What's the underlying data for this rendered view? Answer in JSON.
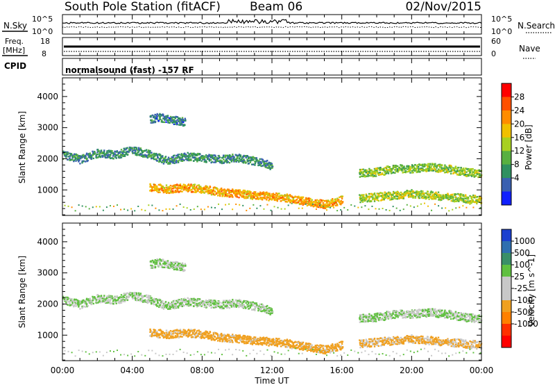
{
  "chart_data": {
    "type": "heatmap",
    "header": {
      "station": "South Pole Station (fitACF)",
      "beam": "Beam 06",
      "date": "02/Nov/2015",
      "cpid_label": "CPID",
      "cpid_text": "normalsound (fast) -157 RF"
    },
    "aux_panels": {
      "nsky": {
        "label": "N.Sky",
        "left_ticks": [
          "10^5",
          "10^0"
        ],
        "right_label": "N.Search",
        "right_ticks": [
          "10^5",
          "10^0"
        ]
      },
      "freq": {
        "label_line1": "Freq.",
        "label_line2": "[MHz]",
        "left_ticks": [
          "18",
          "8"
        ],
        "right_label": "Nave",
        "right_ticks": [
          "60",
          "0"
        ]
      }
    },
    "x_axis": {
      "label": "Time UT",
      "ticks": [
        "00:00",
        "04:00",
        "08:00",
        "12:00",
        "16:00",
        "20:00",
        "00:00"
      ],
      "range_hours": [
        0,
        24
      ]
    },
    "panels": [
      {
        "name": "power",
        "ylabel": "Slant Range [km]",
        "ylim": [
          180,
          4600
        ],
        "yticks": [
          "1000",
          "2000",
          "3000",
          "4000"
        ],
        "colorbar": {
          "label": "Power [dB]",
          "ticks": [
            "28",
            "24",
            "20",
            "16",
            "12",
            "8",
            "4"
          ],
          "colors": [
            "#ff0000",
            "#ff5000",
            "#ff8c00",
            "#f0c000",
            "#a8d020",
            "#58b040",
            "#2f9060",
            "#3a60b0",
            "#1020ff"
          ]
        }
      },
      {
        "name": "velocity",
        "ylabel": "Slant Range [km]",
        "ylim": [
          180,
          4600
        ],
        "yticks": [
          "1000",
          "2000",
          "3000",
          "4000"
        ],
        "colorbar": {
          "label": "Velocity [m s^-1]",
          "ticks": [
            "1000",
            "500",
            "100",
            "25",
            "-25",
            "-100",
            "-500",
            "-1000"
          ],
          "colors": [
            "#1a3fcf",
            "#2f6fb0",
            "#3a8f68",
            "#60c040",
            "#c8c8c8",
            "#c8c8c8",
            "#f0a020",
            "#ff8000",
            "#ff3000",
            "#ff0000"
          ]
        }
      }
    ],
    "echo_bands": [
      {
        "name": "ionospheric-far",
        "t": [
          0,
          1,
          2,
          3,
          4,
          5,
          6,
          7,
          8,
          9,
          10,
          11,
          12
        ],
        "range_km": [
          2150,
          2000,
          2200,
          2150,
          2300,
          2150,
          1950,
          2100,
          2050,
          2000,
          2050,
          1950,
          1800
        ],
        "power_db": 8,
        "velocity": 25
      },
      {
        "name": "ionospheric-near",
        "t": [
          5,
          6,
          7,
          8,
          9,
          10,
          11,
          12,
          13,
          14,
          15,
          16
        ],
        "range_km": [
          1100,
          1050,
          1100,
          1050,
          950,
          900,
          850,
          800,
          750,
          650,
          550,
          700
        ],
        "power_db": 22,
        "velocity": -150
      },
      {
        "name": "late-far",
        "t": [
          17,
          18,
          19,
          20,
          21,
          22,
          23,
          24
        ],
        "range_km": [
          1550,
          1600,
          1700,
          1700,
          1750,
          1700,
          1600,
          1550
        ],
        "power_db": 14,
        "velocity": 25
      },
      {
        "name": "late-near",
        "t": [
          17,
          18,
          19,
          20,
          21,
          22,
          23,
          24
        ],
        "range_km": [
          750,
          800,
          850,
          900,
          850,
          800,
          750,
          700
        ],
        "power_db": 16,
        "velocity": -120
      },
      {
        "name": "upper-patch",
        "t": [
          5,
          5.5,
          6,
          6.5,
          7
        ],
        "range_km": [
          3300,
          3350,
          3300,
          3250,
          3200
        ],
        "power_db": 6,
        "velocity": 25
      }
    ]
  }
}
